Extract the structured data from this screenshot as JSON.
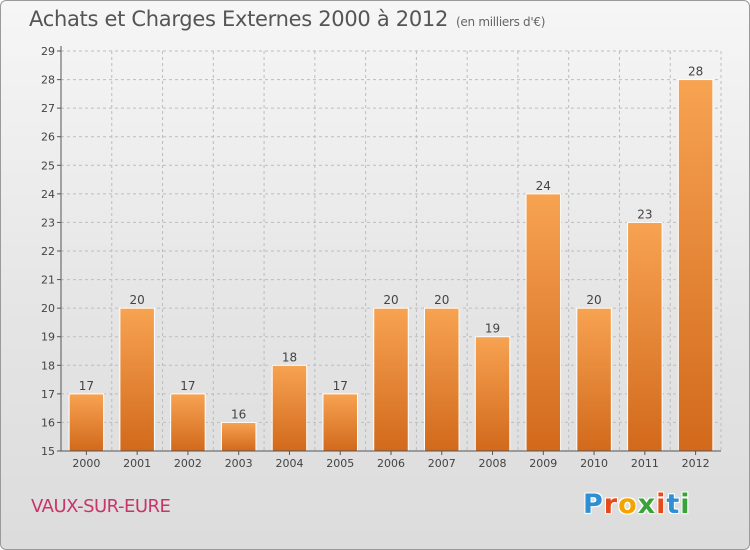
{
  "header": {
    "title": "Achats et Charges Externes 2000 à 2012",
    "unit": "(en milliers d'€)"
  },
  "footer": {
    "commune": "VAUX-SUR-EURE",
    "logo_letters": [
      "P",
      "r",
      "o",
      "x",
      "i",
      "t",
      "i"
    ],
    "logo_colors": [
      "#2f8fd4",
      "#e64a19",
      "#f2a400",
      "#3aa23a",
      "#e64a19",
      "#2f8fd4",
      "#3aa23a"
    ]
  },
  "colors": {
    "bar_top": "#f7a352",
    "bar_bottom": "#d2691b",
    "grid": "#bdbdbd",
    "axis": "#555555"
  },
  "chart_data": {
    "type": "bar",
    "categories": [
      "2000",
      "2001",
      "2002",
      "2003",
      "2004",
      "2005",
      "2006",
      "2007",
      "2008",
      "2009",
      "2010",
      "2011",
      "2012"
    ],
    "values": [
      17,
      20,
      17,
      16,
      18,
      17,
      20,
      20,
      19,
      24,
      20,
      23,
      28
    ],
    "data_labels": [
      "17",
      "20",
      "17",
      "16",
      "18",
      "17",
      "20",
      "20",
      "19",
      "24",
      "20",
      "23",
      "28"
    ],
    "ylim": [
      15,
      29
    ],
    "yticks": [
      15,
      16,
      17,
      18,
      19,
      20,
      21,
      22,
      23,
      24,
      25,
      26,
      27,
      28,
      29
    ],
    "xlabel": "",
    "ylabel": "",
    "grid": true
  }
}
